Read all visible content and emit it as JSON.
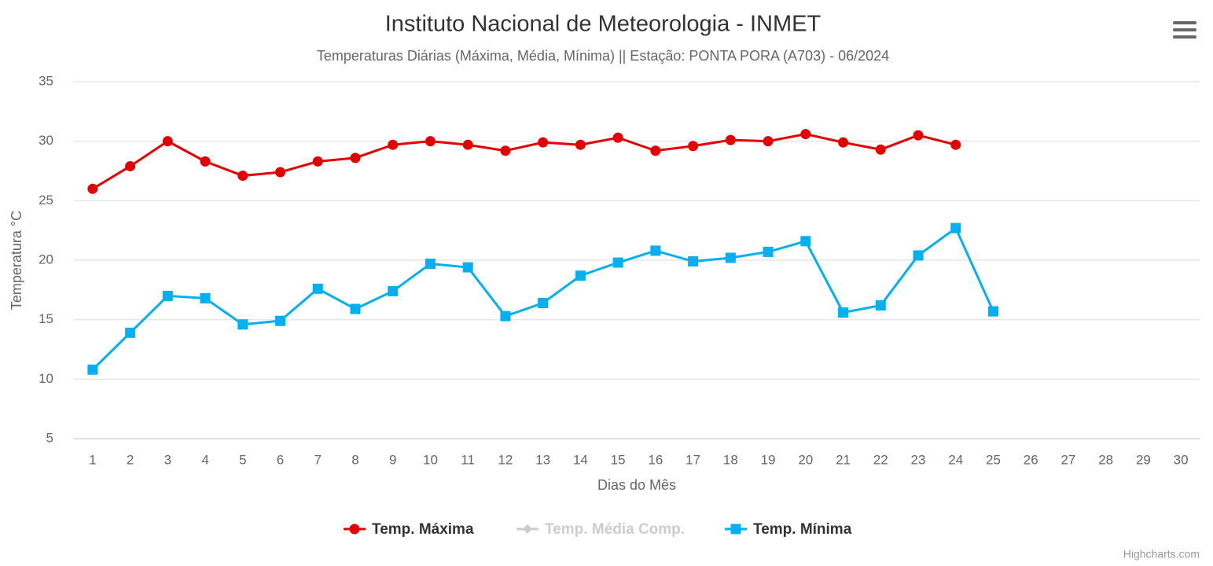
{
  "chart_data": {
    "type": "line",
    "title": "Instituto Nacional de Meteorologia - INMET",
    "subtitle": "Temperaturas Diárias (Máxima, Média, Mínima) || Estação: PONTA PORA (A703) - 06/2024",
    "x_label": "Dias do Mês",
    "y_label": "Temperatura °C",
    "categories": [
      "1",
      "2",
      "3",
      "4",
      "5",
      "6",
      "7",
      "8",
      "9",
      "10",
      "11",
      "12",
      "13",
      "14",
      "15",
      "16",
      "17",
      "18",
      "19",
      "20",
      "21",
      "22",
      "23",
      "24",
      "25",
      "26",
      "27",
      "28",
      "29",
      "30"
    ],
    "series": [
      {
        "name": "Temp. Máxima",
        "color": "#e30000",
        "marker": "circle",
        "visible": true,
        "values": [
          26.0,
          27.9,
          30.0,
          28.3,
          27.1,
          27.4,
          28.3,
          28.6,
          29.7,
          30.0,
          29.7,
          29.2,
          29.9,
          29.7,
          30.3,
          29.2,
          29.6,
          30.1,
          30.0,
          30.6,
          29.9,
          29.3,
          30.5,
          29.7,
          null,
          null,
          null,
          null,
          null,
          null
        ]
      },
      {
        "name": "Temp. Média Comp.",
        "color": "#cccccc",
        "marker": "diamond",
        "visible": false,
        "values": [
          null,
          null,
          null,
          null,
          null,
          null,
          null,
          null,
          null,
          null,
          null,
          null,
          null,
          null,
          null,
          null,
          null,
          null,
          null,
          null,
          null,
          null,
          null,
          null,
          null,
          null,
          null,
          null,
          null,
          null
        ]
      },
      {
        "name": "Temp. Mínima",
        "color": "#00b0f0",
        "marker": "square",
        "visible": true,
        "values": [
          10.8,
          13.9,
          17.0,
          16.8,
          14.6,
          14.9,
          17.6,
          15.9,
          17.4,
          19.7,
          19.4,
          15.3,
          16.4,
          18.7,
          19.8,
          20.8,
          19.9,
          20.2,
          20.7,
          21.6,
          15.6,
          16.2,
          20.4,
          22.7,
          15.7,
          null,
          null,
          null,
          null,
          null
        ]
      }
    ],
    "ylim": [
      5,
      35
    ],
    "yticks": [
      5,
      10,
      15,
      20,
      25,
      30,
      35
    ],
    "grid": true,
    "legend": "bottom",
    "credits": "Highcharts.com"
  }
}
